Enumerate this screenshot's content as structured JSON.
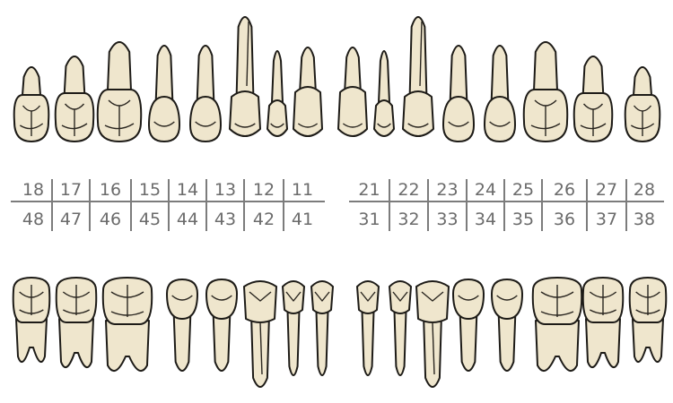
{
  "colors": {
    "tooth_fill": "#efe6cd",
    "tooth_outline": "#1d1b17",
    "grid_line": "#7c7c7c",
    "number_text": "#6b6b6b",
    "background": "#ffffff"
  },
  "chart": {
    "upper_right": [
      "18",
      "17",
      "16",
      "15",
      "14",
      "13",
      "12",
      "11"
    ],
    "upper_left": [
      "21",
      "22",
      "23",
      "24",
      "25",
      "26",
      "27",
      "28"
    ],
    "lower_right": [
      "48",
      "47",
      "46",
      "45",
      "44",
      "43",
      "42",
      "41"
    ],
    "lower_left": [
      "31",
      "32",
      "33",
      "34",
      "35",
      "36",
      "37",
      "38"
    ]
  },
  "upper_teeth": [
    {
      "type": "molar3"
    },
    {
      "type": "molar2"
    },
    {
      "type": "molar1"
    },
    {
      "type": "premolar"
    },
    {
      "type": "premolar"
    },
    {
      "type": "canine"
    },
    {
      "type": "lateral"
    },
    {
      "type": "central"
    },
    {
      "type": "central"
    },
    {
      "type": "lateral"
    },
    {
      "type": "canine"
    },
    {
      "type": "premolar"
    },
    {
      "type": "premolar"
    },
    {
      "type": "molar1"
    },
    {
      "type": "molar2"
    },
    {
      "type": "molar3"
    }
  ],
  "lower_teeth": [
    {
      "type": "molar3"
    },
    {
      "type": "molar2"
    },
    {
      "type": "molar1"
    },
    {
      "type": "premolar"
    },
    {
      "type": "premolar"
    },
    {
      "type": "canine"
    },
    {
      "type": "incisor"
    },
    {
      "type": "incisor"
    },
    {
      "type": "incisor"
    },
    {
      "type": "incisor"
    },
    {
      "type": "canine"
    },
    {
      "type": "premolar"
    },
    {
      "type": "premolar"
    },
    {
      "type": "molar1"
    },
    {
      "type": "molar2"
    },
    {
      "type": "molar3"
    }
  ]
}
